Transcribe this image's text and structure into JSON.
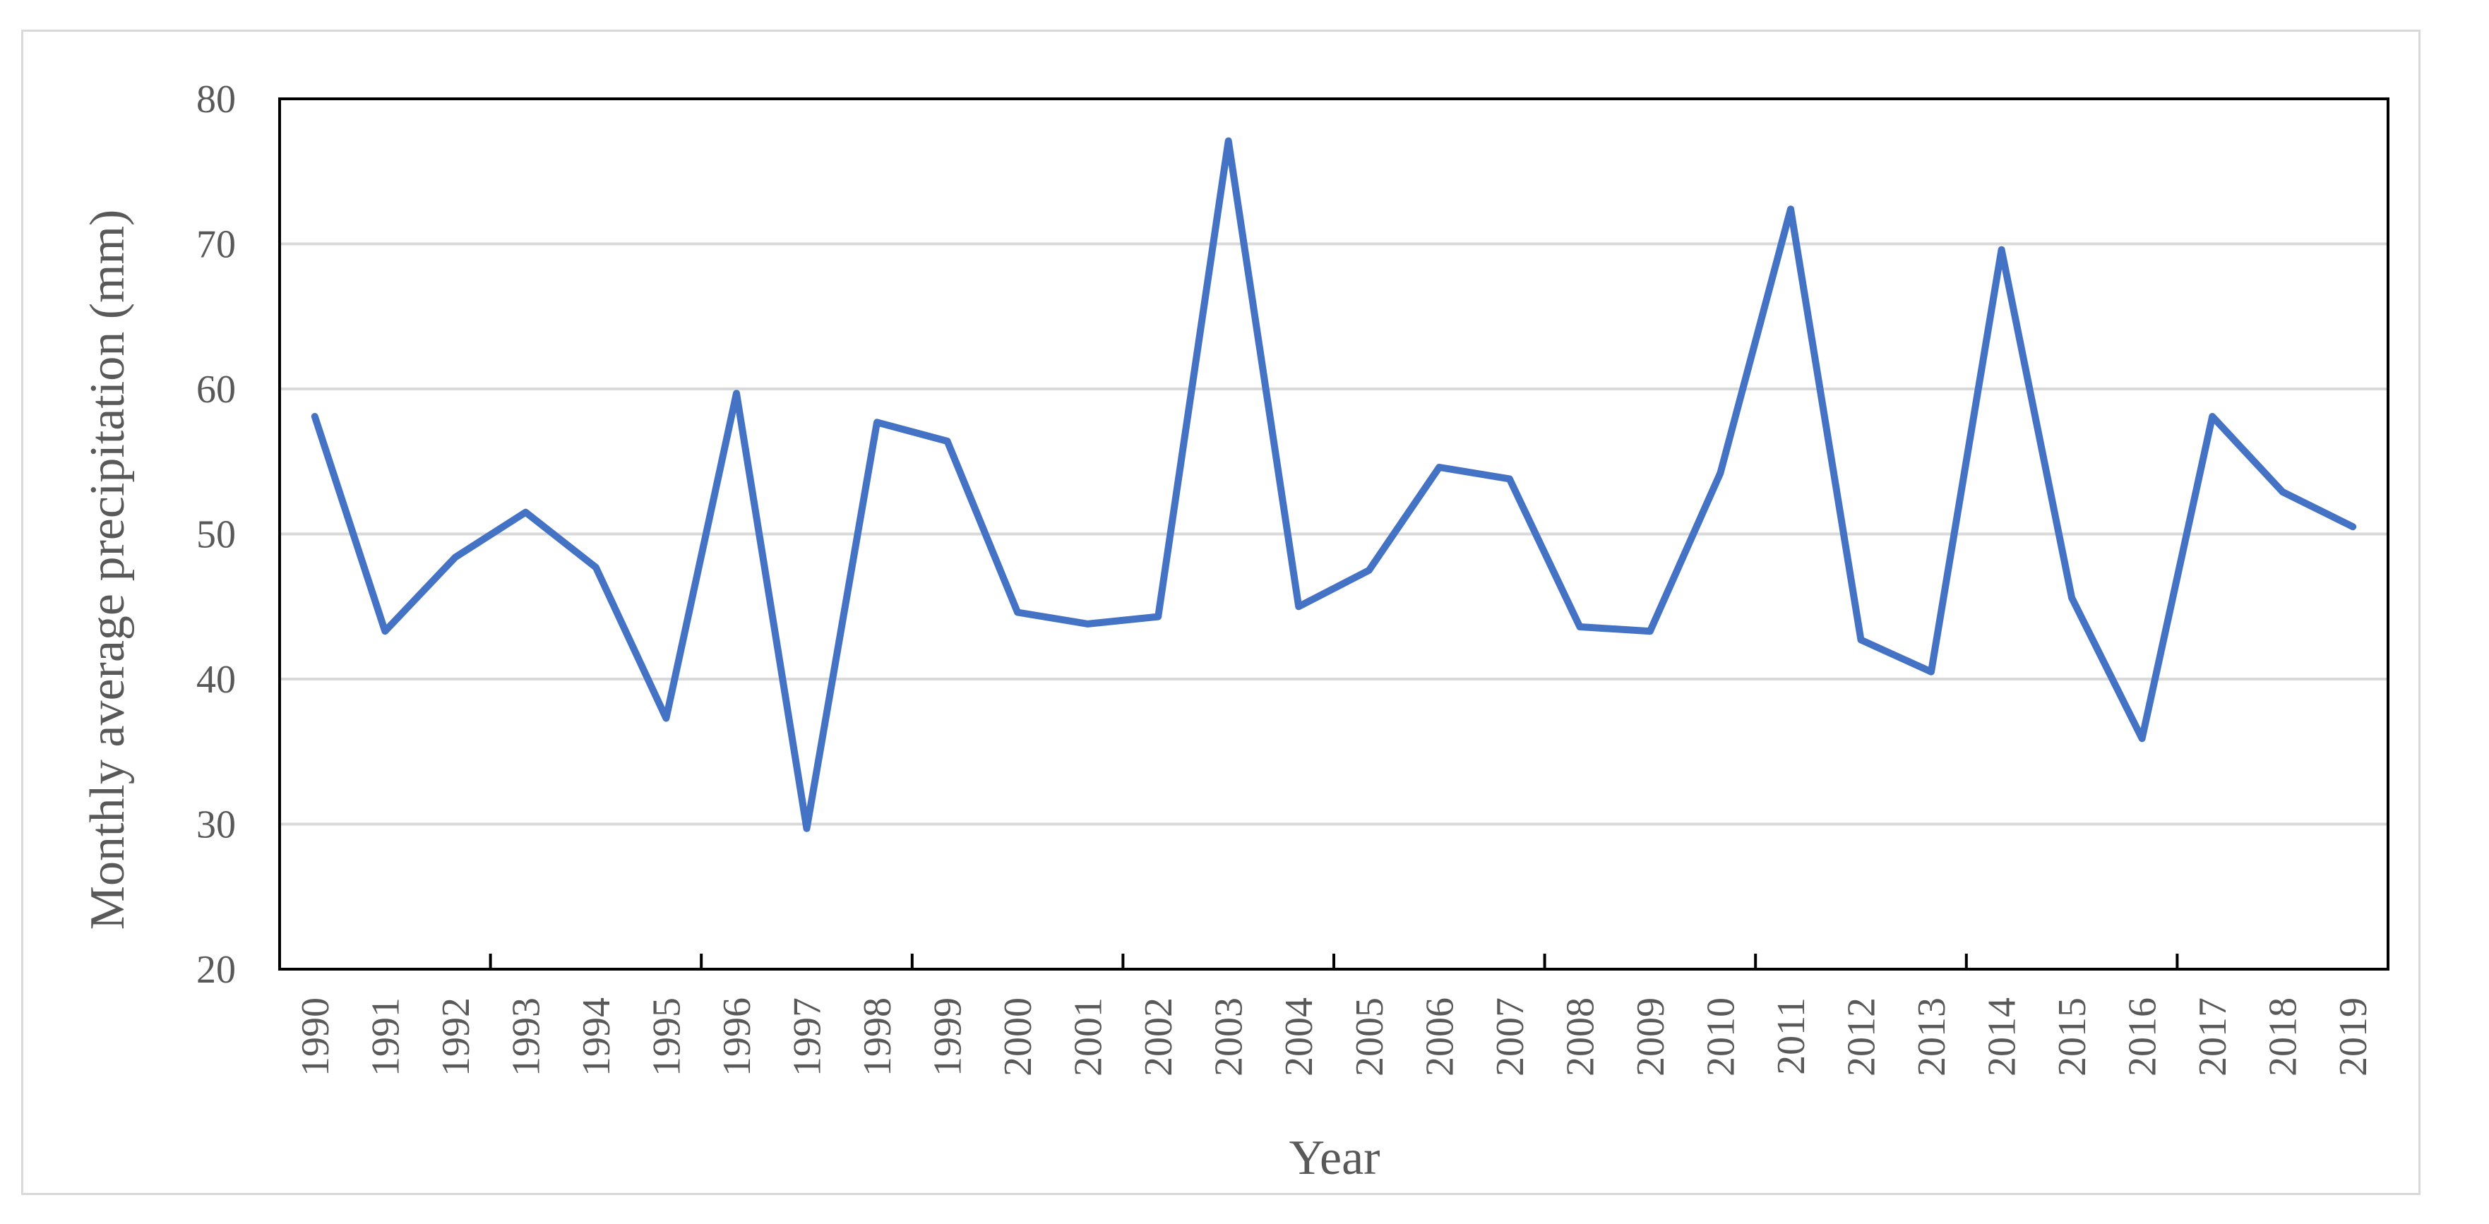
{
  "chart_data": {
    "type": "line",
    "title": "",
    "xlabel": "Year",
    "ylabel": "Monthly average precipitation (mm)",
    "ylim": [
      20,
      80
    ],
    "yticks": [
      20,
      30,
      40,
      50,
      60,
      70,
      80
    ],
    "grid": "horizontal",
    "legend": "none",
    "x": [
      "1990",
      "1991",
      "1992",
      "1993",
      "1994",
      "1995",
      "1996",
      "1997",
      "1998",
      "1999",
      "2000",
      "2001",
      "2002",
      "2003",
      "2004",
      "2005",
      "2006",
      "2007",
      "2008",
      "2009",
      "2010",
      "2011",
      "2012",
      "2013",
      "2014",
      "2015",
      "2016",
      "2017",
      "2018",
      "2019"
    ],
    "series": [
      {
        "color": "#4472c4",
        "values": [
          58.1,
          43.3,
          48.4,
          51.5,
          47.7,
          37.3,
          59.7,
          29.7,
          57.7,
          56.4,
          44.6,
          43.8,
          44.3,
          77.1,
          45.0,
          47.5,
          54.6,
          53.8,
          43.6,
          43.3,
          54.2,
          72.4,
          42.7,
          40.5,
          69.6,
          45.6,
          35.9,
          58.1,
          52.9,
          50.5
        ]
      }
    ]
  }
}
